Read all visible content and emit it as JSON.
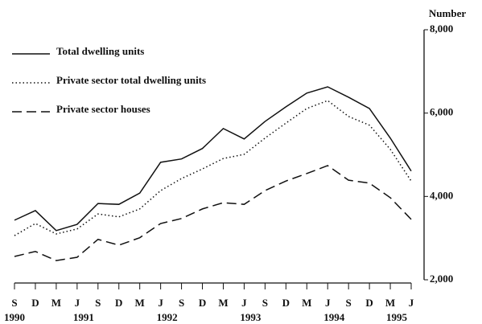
{
  "chart_data": {
    "type": "line",
    "y_label": "Number",
    "categories": [
      "S",
      "D",
      "M",
      "J",
      "S",
      "D",
      "M",
      "J",
      "S",
      "D",
      "M",
      "J",
      "S",
      "D",
      "M",
      "J",
      "S",
      "D",
      "M",
      "J"
    ],
    "year_labels": [
      "1990",
      null,
      null,
      "1991",
      null,
      null,
      null,
      "1992",
      null,
      null,
      null,
      "1993",
      null,
      null,
      null,
      "1994",
      null,
      null,
      "1995",
      null
    ],
    "series": [
      {
        "name": "Total dwelling units",
        "color": "#111111",
        "dash": "none",
        "values": [
          3430,
          3660,
          3180,
          3330,
          3830,
          3810,
          4080,
          4820,
          4900,
          5150,
          5630,
          5380,
          5800,
          6150,
          6480,
          6630,
          6380,
          6110,
          5400,
          4610
        ]
      },
      {
        "name": "Private sector total dwelling units",
        "color": "#111111",
        "dash": "1.5 3",
        "values": [
          3060,
          3350,
          3100,
          3220,
          3580,
          3510,
          3700,
          4140,
          4430,
          4660,
          4910,
          5010,
          5400,
          5760,
          6110,
          6300,
          5920,
          5710,
          5130,
          4370
        ]
      },
      {
        "name": "Private sector houses",
        "color": "#111111",
        "dash": "12 6",
        "values": [
          2560,
          2680,
          2460,
          2540,
          2970,
          2830,
          3010,
          3350,
          3470,
          3700,
          3850,
          3810,
          4140,
          4370,
          4550,
          4740,
          4390,
          4320,
          3970,
          3450
        ]
      }
    ],
    "ylim": [
      2000,
      8000
    ],
    "yticks": [
      {
        "value": 2000,
        "label": "2,000"
      },
      {
        "value": 4000,
        "label": "4,000"
      },
      {
        "value": 6000,
        "label": "6,000"
      },
      {
        "value": 8000,
        "label": "8,000"
      }
    ],
    "grid": false,
    "y_axis_side": "right"
  }
}
